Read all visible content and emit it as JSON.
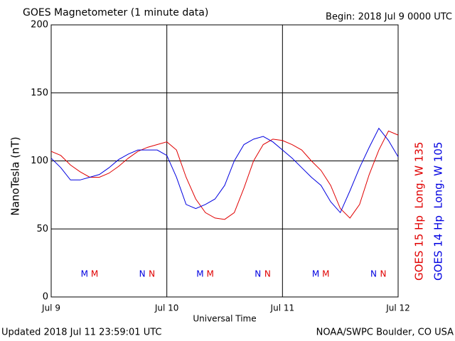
{
  "chart_data": {
    "type": "line",
    "title": "GOES Magnetometer (1 minute data)",
    "subtitle": "Begin:  2018 Jul 9 0000 UTC",
    "y_label": "NanoTesla (nT)",
    "x_label": "Universal Time",
    "footer_left": "Updated 2018 Jul 11 23:59:01 UTC",
    "footer_right": "NOAA/SWPC Boulder, CO USA",
    "x": [
      0,
      2,
      4,
      6,
      8,
      10,
      12,
      14,
      16,
      18,
      20,
      22,
      24,
      26,
      28,
      30,
      32,
      34,
      36,
      38,
      40,
      42,
      44,
      46,
      48,
      50,
      52,
      54,
      56,
      58,
      60,
      62,
      64,
      66,
      68,
      70,
      72
    ],
    "xlim": [
      0,
      72
    ],
    "xticks": [
      {
        "value": 0,
        "label": "Jul 9"
      },
      {
        "value": 24,
        "label": "Jul 10"
      },
      {
        "value": 48,
        "label": "Jul 11"
      },
      {
        "value": 72,
        "label": "Jul 12"
      }
    ],
    "ylim": [
      0,
      200
    ],
    "yticks": [
      0,
      50,
      100,
      150,
      200
    ],
    "grid": true,
    "series": [
      {
        "name": "GOES 15 Hp  Long. W 135",
        "color": "#e00000",
        "values": [
          107,
          104,
          97,
          92,
          88,
          88,
          91,
          96,
          102,
          107,
          110,
          112,
          114,
          108,
          88,
          72,
          62,
          58,
          57,
          62,
          80,
          100,
          112,
          116,
          115,
          112,
          108,
          100,
          93,
          82,
          65,
          58,
          68,
          90,
          108,
          122,
          119
        ]
      },
      {
        "name": "GOES 14 Hp  Long. W 105",
        "color": "#0000e0",
        "values": [
          102,
          95,
          86,
          86,
          88,
          90,
          95,
          101,
          105,
          108,
          108,
          108,
          104,
          88,
          68,
          65,
          68,
          72,
          82,
          100,
          112,
          116,
          118,
          114,
          108,
          102,
          95,
          88,
          82,
          70,
          62,
          78,
          95,
          110,
          124,
          115,
          103
        ]
      }
    ],
    "markers": [
      {
        "text": "M",
        "x": 6.9,
        "color": "#0000e0"
      },
      {
        "text": "M",
        "x": 9.0,
        "color": "#e00000"
      },
      {
        "text": "N",
        "x": 18.9,
        "color": "#0000e0"
      },
      {
        "text": "N",
        "x": 20.9,
        "color": "#e00000"
      },
      {
        "text": "M",
        "x": 30.9,
        "color": "#0000e0"
      },
      {
        "text": "M",
        "x": 33.0,
        "color": "#e00000"
      },
      {
        "text": "N",
        "x": 42.9,
        "color": "#0000e0"
      },
      {
        "text": "N",
        "x": 44.9,
        "color": "#e00000"
      },
      {
        "text": "M",
        "x": 54.9,
        "color": "#0000e0"
      },
      {
        "text": "M",
        "x": 57.0,
        "color": "#e00000"
      },
      {
        "text": "N",
        "x": 66.9,
        "color": "#0000e0"
      },
      {
        "text": "N",
        "x": 68.9,
        "color": "#e00000"
      }
    ]
  }
}
